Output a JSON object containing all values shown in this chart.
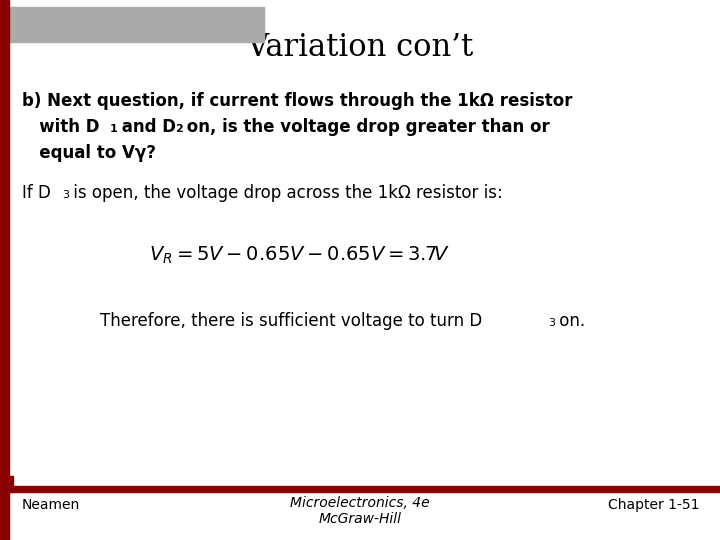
{
  "title": "Variation con’t",
  "background_color": "#ffffff",
  "dark_red": "#8b0000",
  "gray_bar_color": "#aaaaaa",
  "footer_left": "Neamen",
  "footer_center_1": "Microelectronics, 4e",
  "footer_center_2": "McGraw-Hill",
  "footer_right": "Chapter 1-51"
}
